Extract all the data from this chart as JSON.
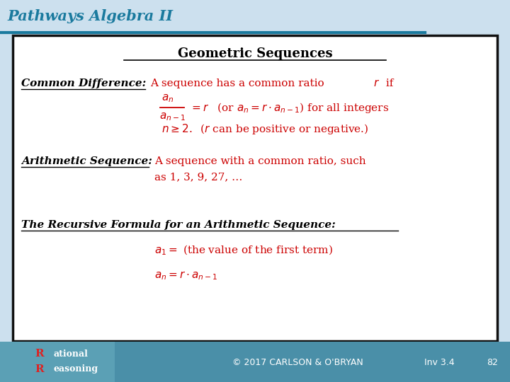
{
  "title_text": "Pathways Algebra II",
  "title_color": "#1a7a9e",
  "header_bg_color": "#cce0ee",
  "header_line_color": "#1a7a9e",
  "slide_title": "Geometric Sequences",
  "main_bg": "#ffffff",
  "border_color": "#111111",
  "footer_bg": "#4a8fa8",
  "footer_text_color": "#ffffff",
  "footer_copyright": "© 2017 CARLSON & O'BRYAN",
  "footer_inv": "Inv 3.4",
  "footer_page": "82",
  "math_color": "#cc0000",
  "label1": "Common Difference:",
  "label2": "Arithmetic Sequence:",
  "label3": "The Recursive Formula for an Arithmetic Sequence:"
}
